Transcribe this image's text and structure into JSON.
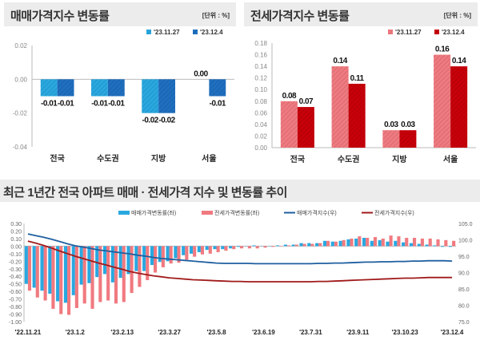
{
  "colors": {
    "sale_a": "#29a8e0",
    "sale_b": "#1f6fc0",
    "jeonse_a": "#f07a80",
    "jeonse_b": "#c8000a",
    "sale_idx": "#1f5fa0",
    "jeonse_idx": "#a01a1a"
  },
  "chart_data": [
    {
      "type": "bar",
      "title": "매매가격지수 변동률",
      "unit": "[단위 : %]",
      "categories": [
        "전국",
        "수도권",
        "지방",
        "서울"
      ],
      "series": [
        {
          "name": "'23.11.27",
          "values": [
            -0.01,
            -0.01,
            -0.02,
            0.0
          ]
        },
        {
          "name": "'23.12.4",
          "values": [
            -0.01,
            -0.01,
            -0.02,
            -0.01
          ]
        }
      ],
      "ylim": [
        -0.04,
        0.02
      ],
      "yticks": [
        "0.02",
        "0.00",
        "-0.02",
        "-0.04"
      ],
      "ytick_values": [
        0.02,
        0,
        -0.02,
        -0.04
      ],
      "labels": [
        [
          "-0.01",
          "-0.01",
          "-0.02",
          "0.00"
        ],
        [
          "-0.01",
          "-0.01",
          "-0.02",
          "-0.01"
        ]
      ]
    },
    {
      "type": "bar",
      "title": "전세가격지수 변동률",
      "unit": "[단위 : %]",
      "categories": [
        "전국",
        "수도권",
        "지방",
        "서울"
      ],
      "series": [
        {
          "name": "'23.11.27",
          "values": [
            0.08,
            0.14,
            0.03,
            0.16
          ]
        },
        {
          "name": "'23.12.4",
          "values": [
            0.07,
            0.11,
            0.03,
            0.14
          ]
        }
      ],
      "ylim": [
        0,
        0.18
      ],
      "yticks": [
        "0.18",
        "0.16",
        "0.14",
        "0.12",
        "0.10",
        "0.08",
        "0.06",
        "0.04",
        "0.02",
        "0.00"
      ],
      "ytick_values": [
        0.18,
        0.16,
        0.14,
        0.12,
        0.1,
        0.08,
        0.06,
        0.04,
        0.02,
        0
      ],
      "labels": [
        [
          "0.08",
          "0.14",
          "0.03",
          "0.16"
        ],
        [
          "0.07",
          "0.11",
          "0.03",
          "0.14"
        ]
      ]
    },
    {
      "type": "bar+line",
      "title": "최근 1년간 전국 아파트 매매 · 전세가격 지수 및 변동률 추이",
      "legend": [
        "매매가격변동률(좌)",
        "전세가격변동률(좌)",
        "매매가격지수(우)",
        "전세가격지수(우)"
      ],
      "ylim_left": [
        -1.0,
        0.3
      ],
      "ylim_right": [
        75,
        105
      ],
      "yticks_left": [
        "0.30",
        "0.20",
        "0.10",
        "0.00",
        "-0.10",
        "-0.20",
        "-0.30",
        "-0.40",
        "-0.50",
        "-0.60",
        "-0.70",
        "-0.80",
        "-0.90",
        "-1.00"
      ],
      "yticks_right": [
        "105.0",
        "100.0",
        "95.0",
        "90.0",
        "85.0",
        "80.0",
        "75.0"
      ],
      "xticks": [
        "'22.11.21",
        "'23.1.2",
        "'23.2.13",
        "'23.3.27",
        "'23.5.8",
        "'23.6.19",
        "'23.7.31",
        "'23.9.11",
        "'23.10.23",
        "'23.12.4"
      ],
      "sale_change": [
        -0.5,
        -0.55,
        -0.59,
        -0.63,
        -0.73,
        -0.75,
        -0.65,
        -0.51,
        -0.49,
        -0.41,
        -0.37,
        -0.48,
        -0.42,
        -0.37,
        -0.33,
        -0.33,
        -0.25,
        -0.21,
        -0.2,
        -0.16,
        -0.12,
        -0.1,
        -0.08,
        -0.05,
        -0.04,
        -0.04,
        -0.03,
        -0.01,
        0.0,
        0.01,
        0.0,
        0.0,
        0.01,
        0.02,
        0.02,
        0.04,
        0.04,
        0.04,
        0.07,
        0.06,
        0.07,
        0.09,
        0.1,
        0.11,
        0.07,
        0.08,
        0.06,
        0.07,
        0.05,
        0.04,
        0.03,
        0.02,
        0.01,
        -0.01,
        -0.01
      ],
      "jeonse_change": [
        -0.59,
        -0.68,
        -0.72,
        -0.83,
        -0.9,
        -0.91,
        -0.82,
        -0.76,
        -0.83,
        -0.74,
        -0.72,
        -0.76,
        -0.74,
        -0.62,
        -0.54,
        -0.45,
        -0.35,
        -0.28,
        -0.23,
        -0.22,
        -0.18,
        -0.14,
        -0.11,
        -0.1,
        -0.08,
        -0.06,
        -0.04,
        -0.03,
        -0.03,
        -0.03,
        -0.02,
        -0.01,
        0.0,
        0.01,
        0.02,
        0.03,
        0.03,
        0.04,
        0.07,
        0.06,
        0.08,
        0.1,
        0.13,
        0.11,
        0.12,
        0.1,
        0.14,
        0.13,
        0.11,
        0.11,
        0.1,
        0.1,
        0.09,
        0.08,
        0.07
      ],
      "sale_index": [
        101.8,
        101.3,
        100.8,
        100.2,
        99.5,
        98.8,
        98.2,
        97.8,
        97.4,
        96.9,
        96.6,
        96.3,
        96.0,
        95.7,
        95.3,
        95.0,
        94.6,
        94.3,
        94.1,
        93.9,
        93.7,
        93.5,
        93.3,
        93.1,
        92.9,
        92.8,
        92.8,
        92.8,
        92.8,
        92.7,
        92.7,
        92.7,
        92.7,
        92.7,
        92.7,
        92.7,
        92.7,
        92.8,
        92.8,
        92.9,
        92.9,
        93.0,
        93.1,
        93.2,
        93.2,
        93.3,
        93.3,
        93.4,
        93.4,
        93.5,
        93.5,
        93.6,
        93.6,
        93.6,
        93.5
      ],
      "jeonse_index": [
        99.6,
        99.0,
        98.3,
        97.5,
        96.6,
        95.8,
        95.0,
        94.3,
        93.6,
        92.9,
        92.3,
        91.6,
        91.0,
        90.3,
        89.8,
        89.4,
        89.0,
        88.7,
        88.4,
        88.2,
        88.0,
        87.8,
        87.7,
        87.6,
        87.5,
        87.4,
        87.3,
        87.3,
        87.2,
        87.2,
        87.2,
        87.2,
        87.2,
        87.2,
        87.2,
        87.2,
        87.2,
        87.3,
        87.3,
        87.4,
        87.5,
        87.6,
        87.7,
        87.8,
        87.9,
        88.0,
        88.1,
        88.2,
        88.3,
        88.3,
        88.4,
        88.5,
        88.5,
        88.5,
        88.5
      ]
    }
  ]
}
